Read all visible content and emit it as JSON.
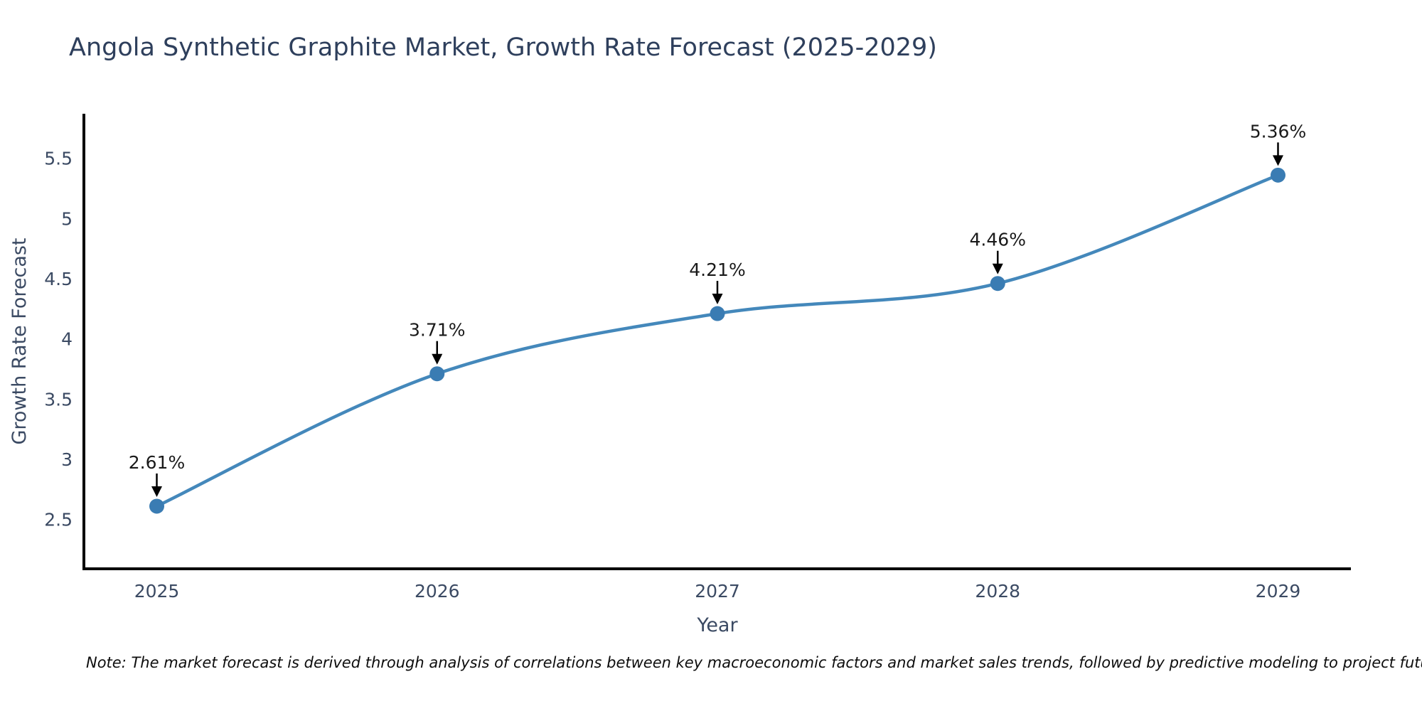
{
  "chart_data": {
    "type": "line",
    "title": "Angola Synthetic Graphite Market, Growth Rate Forecast (2025-2029)",
    "xlabel": "Year",
    "ylabel": "Growth Rate Forecast",
    "x": [
      2025,
      2026,
      2027,
      2028,
      2029
    ],
    "values": [
      2.61,
      3.71,
      4.21,
      4.46,
      5.36
    ],
    "point_labels": [
      "2.61%",
      "3.71%",
      "4.21%",
      "4.46%",
      "5.36%"
    ],
    "x_tick_labels": [
      "2025",
      "2026",
      "2027",
      "2028",
      "2029"
    ],
    "y_tick_values": [
      2.5,
      3,
      3.5,
      4,
      4.5,
      5,
      5.5
    ],
    "y_tick_labels": [
      "2.5",
      "3",
      "3.5",
      "4",
      "4.5",
      "5",
      "5.5"
    ],
    "xlim": [
      2024.74,
      2029.26
    ],
    "ylim": [
      2.09,
      5.87
    ],
    "grid": false,
    "legend": "none",
    "line_smoothing": "spline",
    "line_color": "#4488bb",
    "marker_color": "#3a7cb3",
    "annotation_text_color": "#1a1a1a",
    "annotation_arrow_color": "#000000",
    "axis_spine_color": "#000000",
    "tick_label_color": "#3b4a63",
    "axis_title_color": "#3b4a63",
    "title_color": "#2e3f5c",
    "note": "Note: The market forecast is derived through analysis of correlations between key macroeconomic factors and market sales trends, followed by predictive modeling to project future sales"
  }
}
